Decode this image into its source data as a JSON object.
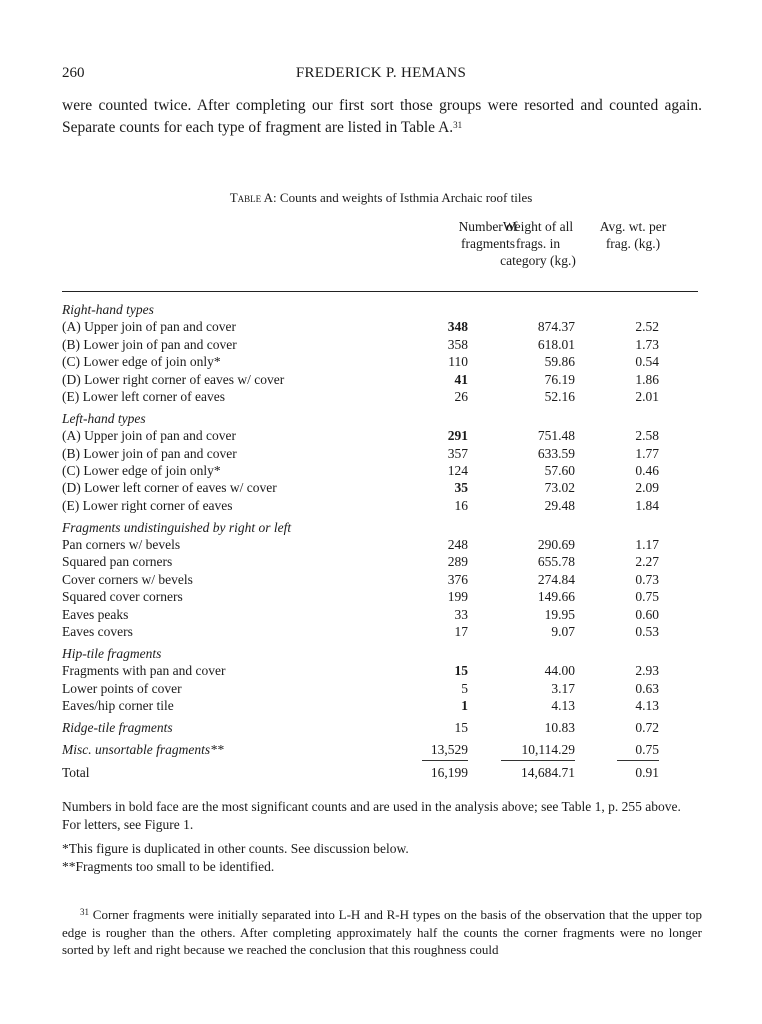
{
  "header": {
    "page_number": "260",
    "running_head": "FREDERICK P. HEMANS"
  },
  "body": {
    "paragraph": "were counted twice. After completing our first sort those groups were resorted and counted again. Separate counts for each type of fragment are listed in Table A.",
    "footnote_ref": "31"
  },
  "table": {
    "caption_label": "Table A:",
    "caption_text": " Counts and weights of Isthmia Archaic roof tiles",
    "columns": [
      "Number of fragments",
      "Weight of all frags. in category (kg.)",
      "Avg. wt. per frag. (kg.)"
    ],
    "rows": [
      {
        "label": "Right-hand types",
        "italic": true,
        "group": true
      },
      {
        "label": "(A) Upper join of pan and cover",
        "n": "348",
        "w": "874.37",
        "a": "2.52",
        "bold": true
      },
      {
        "label": "(B) Lower join of pan and cover",
        "n": "358",
        "w": "618.01",
        "a": "1.73"
      },
      {
        "label": "(C) Lower edge of join only*",
        "n": "110",
        "w": "59.86",
        "a": "0.54"
      },
      {
        "label": "(D) Lower right corner of eaves w/ cover",
        "n": "41",
        "w": "76.19",
        "a": "1.86",
        "bold": true
      },
      {
        "label": "(E) Lower left corner of eaves",
        "n": "26",
        "w": "52.16",
        "a": "2.01"
      },
      {
        "label": "Left-hand types",
        "italic": true,
        "group": true
      },
      {
        "label": "(A) Upper join of pan and cover",
        "n": "291",
        "w": "751.48",
        "a": "2.58",
        "bold": true
      },
      {
        "label": "(B) Lower join of pan and cover",
        "n": "357",
        "w": "633.59",
        "a": "1.77"
      },
      {
        "label": "(C) Lower edge of join only*",
        "n": "124",
        "w": "57.60",
        "a": "0.46"
      },
      {
        "label": "(D) Lower left corner of eaves w/ cover",
        "n": "35",
        "w": "73.02",
        "a": "2.09",
        "bold": true
      },
      {
        "label": "(E) Lower right corner of eaves",
        "n": "16",
        "w": "29.48",
        "a": "1.84"
      },
      {
        "label": "Fragments undistinguished by right or left",
        "italic": true,
        "group": true
      },
      {
        "label": "Pan corners w/ bevels",
        "n": "248",
        "w": "290.69",
        "a": "1.17"
      },
      {
        "label": "Squared pan corners",
        "n": "289",
        "w": "655.78",
        "a": "2.27"
      },
      {
        "label": "Cover corners w/ bevels",
        "n": "376",
        "w": "274.84",
        "a": "0.73"
      },
      {
        "label": "Squared cover corners",
        "n": "199",
        "w": "149.66",
        "a": "0.75"
      },
      {
        "label": "Eaves peaks",
        "n": "33",
        "w": "19.95",
        "a": "0.60"
      },
      {
        "label": "Eaves covers",
        "n": "17",
        "w": "9.07",
        "a": "0.53"
      },
      {
        "label": "Hip-tile fragments",
        "italic": true,
        "group": true
      },
      {
        "label": "Fragments with pan and cover",
        "n": "15",
        "w": "44.00",
        "a": "2.93",
        "bold": true
      },
      {
        "label": "Lower points of cover",
        "n": "5",
        "w": "3.17",
        "a": "0.63"
      },
      {
        "label": "Eaves/hip corner tile",
        "n": "1",
        "w": "4.13",
        "a": "4.13",
        "bold": true
      },
      {
        "label": "Ridge-tile fragments",
        "italic": true,
        "group": true,
        "n": "15",
        "w": "10.83",
        "a": "0.72"
      },
      {
        "label": "Misc. unsortable fragments**",
        "italic": true,
        "group": true,
        "n": "13,529",
        "w": "10,114.29",
        "a": "0.75"
      }
    ],
    "total": {
      "label": "Total",
      "n": "16,199",
      "w": "14,684.71",
      "a": "0.91"
    }
  },
  "notes": {
    "bold_note": "Numbers in bold face are the most significant counts and are used in the analysis above; see Table 1, p. 255 above. For letters, see Figure 1.",
    "star1": "*This figure is duplicated in other counts. See discussion below.",
    "star2": "**Fragments too small to be identified."
  },
  "footnote": {
    "number": "31",
    "text": " Corner fragments were initially separated into L-H and R-H types on the basis of the observation that the upper top edge is rougher than the others. After completing approximately half the counts the corner fragments were no longer sorted by left and right because we reached the conclusion that this roughness could"
  }
}
